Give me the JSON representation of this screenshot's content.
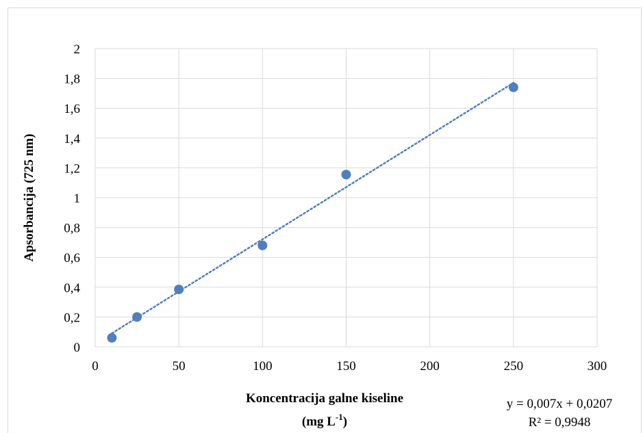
{
  "chart_data": {
    "type": "scatter",
    "title": "",
    "xlabel": "Koncentracija galne kiseline",
    "xlabel_unit_base": "(mg L",
    "xlabel_unit_exp": "-1",
    "xlabel_unit_close": ")",
    "ylabel": "Apsorbancija (725 nm)",
    "xlim": [
      0,
      300
    ],
    "ylim": [
      0,
      2
    ],
    "x_ticks": [
      0,
      50,
      100,
      150,
      200,
      250,
      300
    ],
    "x_tick_labels": [
      "0",
      "50",
      "100",
      "150",
      "200",
      "250",
      "300"
    ],
    "y_ticks": [
      0,
      0.2,
      0.4,
      0.6,
      0.8,
      1,
      1.2,
      1.4,
      1.6,
      1.8,
      2
    ],
    "y_tick_labels": [
      "0",
      "0,2",
      "0,4",
      "0,6",
      "0,8",
      "1",
      "1,2",
      "1,4",
      "1,6",
      "1,8",
      "2"
    ],
    "grid": true,
    "series": [
      {
        "x": [
          10,
          25,
          50,
          100,
          150,
          250
        ],
        "y": [
          0.06,
          0.2,
          0.385,
          0.68,
          1.155,
          1.74
        ],
        "color": "#4f7fbf"
      }
    ],
    "trendline": {
      "type": "linear",
      "slope": 0.007,
      "intercept": 0.0207,
      "x_range": [
        10,
        250
      ],
      "color": "#4f7fbf",
      "style": "dotted",
      "equation_label": "y = 0,007x + 0,0207",
      "r2_label": "R² = 0,9948"
    }
  }
}
